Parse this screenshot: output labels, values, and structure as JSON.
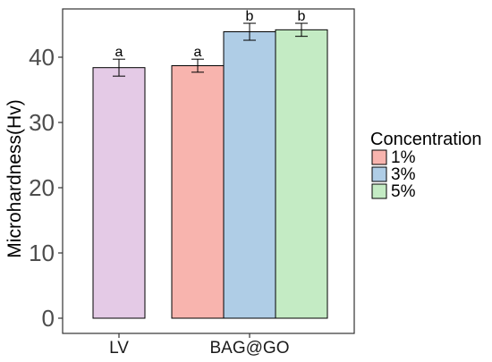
{
  "chart_data": {
    "type": "bar",
    "xlabel": "",
    "ylabel": "Microhardness(Hv)",
    "ylim": [
      0,
      48
    ],
    "yticks": [
      0,
      10,
      20,
      30,
      40
    ],
    "grid": false,
    "legend": {
      "title": "Concentration",
      "placement": "right",
      "entries": [
        {
          "label": "1%",
          "color": "#F8B4AE"
        },
        {
          "label": "3%",
          "color": "#AFCDE6"
        },
        {
          "label": "5%",
          "color": "#C4EBC4"
        }
      ]
    },
    "groups": [
      {
        "label": "LV",
        "bars": [
          {
            "value": 38.4,
            "error": 1.3,
            "sig": "a",
            "color": "#E4CAE6",
            "in_legend": false
          }
        ]
      },
      {
        "label": "BAG@GO",
        "bars": [
          {
            "value": 38.7,
            "error": 1.0,
            "sig": "a",
            "color": "#F8B4AE",
            "series": "1%"
          },
          {
            "value": 43.9,
            "error": 1.3,
            "sig": "b",
            "color": "#AFCDE6",
            "series": "3%"
          },
          {
            "value": 44.2,
            "error": 1.0,
            "sig": "b",
            "color": "#C4EBC4",
            "series": "5%"
          }
        ]
      }
    ]
  }
}
